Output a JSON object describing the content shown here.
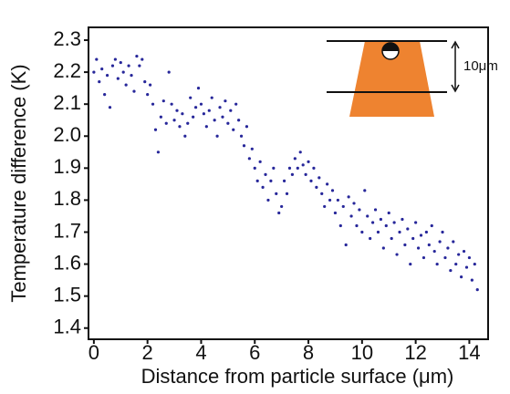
{
  "chart_data": {
    "type": "scatter",
    "xlabel": "Distance from particle surface (μm)",
    "ylabel": "Temperature difference (K)",
    "inset_label": "10μm",
    "xlim": [
      -0.2,
      14.7
    ],
    "ylim": [
      1.365,
      2.34
    ],
    "xticks": [
      0,
      2,
      4,
      6,
      8,
      10,
      12,
      14
    ],
    "yticks": [
      1.4,
      1.5,
      1.6,
      1.7,
      1.8,
      1.9,
      {
        "value": 2,
        "label": "2.0"
      },
      2.1,
      2.2,
      2.3
    ],
    "series": [
      {
        "color": "#27279a",
        "x": [
          0,
          0.1,
          0.2,
          0.3,
          0.4,
          0.5,
          0.6,
          0.7,
          0.8,
          0.9,
          1,
          1.1,
          1.2,
          1.3,
          1.4,
          1.5,
          1.6,
          1.7,
          1.8,
          1.9,
          2,
          2.1,
          2.2,
          2.3,
          2.4,
          2.5,
          2.6,
          2.7,
          2.8,
          2.9,
          3,
          3.1,
          3.2,
          3.3,
          3.4,
          3.5,
          3.6,
          3.7,
          3.8,
          3.9,
          4,
          4.1,
          4.2,
          4.3,
          4.4,
          4.5,
          4.6,
          4.7,
          4.8,
          4.9,
          5,
          5.1,
          5.2,
          5.3,
          5.4,
          5.5,
          5.6,
          5.7,
          5.8,
          5.9,
          6,
          6.1,
          6.2,
          6.3,
          6.4,
          6.5,
          6.6,
          6.7,
          6.8,
          6.9,
          7,
          7.1,
          7.2,
          7.3,
          7.4,
          7.5,
          7.6,
          7.7,
          7.8,
          7.9,
          8,
          8.1,
          8.2,
          8.3,
          8.4,
          8.5,
          8.6,
          8.7,
          8.8,
          8.9,
          9,
          9.1,
          9.2,
          9.3,
          9.4,
          9.5,
          9.6,
          9.7,
          9.8,
          9.9,
          10,
          10.1,
          10.2,
          10.3,
          10.4,
          10.5,
          10.6,
          10.7,
          10.8,
          10.9,
          11,
          11.1,
          11.2,
          11.3,
          11.4,
          11.5,
          11.6,
          11.7,
          11.8,
          11.9,
          12,
          12.1,
          12.2,
          12.3,
          12.4,
          12.5,
          12.6,
          12.7,
          12.8,
          12.9,
          13,
          13.1,
          13.2,
          13.3,
          13.4,
          13.5,
          13.6,
          13.7,
          13.8,
          13.9,
          14,
          14.1,
          14.2,
          14.3
        ],
        "values": [
          2.2,
          2.24,
          2.17,
          2.21,
          2.13,
          2.19,
          2.09,
          2.22,
          2.24,
          2.18,
          2.23,
          2.2,
          2.16,
          2.22,
          2.19,
          2.14,
          2.25,
          2.22,
          2.24,
          2.17,
          2.13,
          2.16,
          2.1,
          2.02,
          1.95,
          2.06,
          2.11,
          2.04,
          2.2,
          2.1,
          2.05,
          2.08,
          2.03,
          2.07,
          2,
          2.04,
          2.12,
          2.06,
          2.09,
          2.15,
          2.1,
          2.07,
          2.03,
          2.08,
          2.12,
          2.05,
          2,
          2.09,
          2.06,
          2.11,
          2.04,
          2.08,
          2.02,
          2.1,
          2.05,
          2,
          1.97,
          2.03,
          1.93,
          1.96,
          1.9,
          1.86,
          1.92,
          1.84,
          1.88,
          1.8,
          1.86,
          1.9,
          1.82,
          1.76,
          1.78,
          1.86,
          1.82,
          1.9,
          1.88,
          1.93,
          1.9,
          1.95,
          1.91,
          1.88,
          1.92,
          1.86,
          1.9,
          1.84,
          1.87,
          1.82,
          1.78,
          1.85,
          1.8,
          1.83,
          1.76,
          1.8,
          1.72,
          1.78,
          1.66,
          1.81,
          1.75,
          1.79,
          1.72,
          1.77,
          1.7,
          1.83,
          1.75,
          1.68,
          1.73,
          1.77,
          1.7,
          1.74,
          1.65,
          1.72,
          1.76,
          1.68,
          1.73,
          1.63,
          1.7,
          1.74,
          1.66,
          1.71,
          1.6,
          1.68,
          1.73,
          1.65,
          1.69,
          1.62,
          1.7,
          1.66,
          1.72,
          1.64,
          1.6,
          1.67,
          1.7,
          1.62,
          1.65,
          1.58,
          1.67,
          1.6,
          1.63,
          1.56,
          1.64,
          1.59,
          1.62,
          1.55,
          1.6,
          1.52
        ]
      }
    ]
  }
}
